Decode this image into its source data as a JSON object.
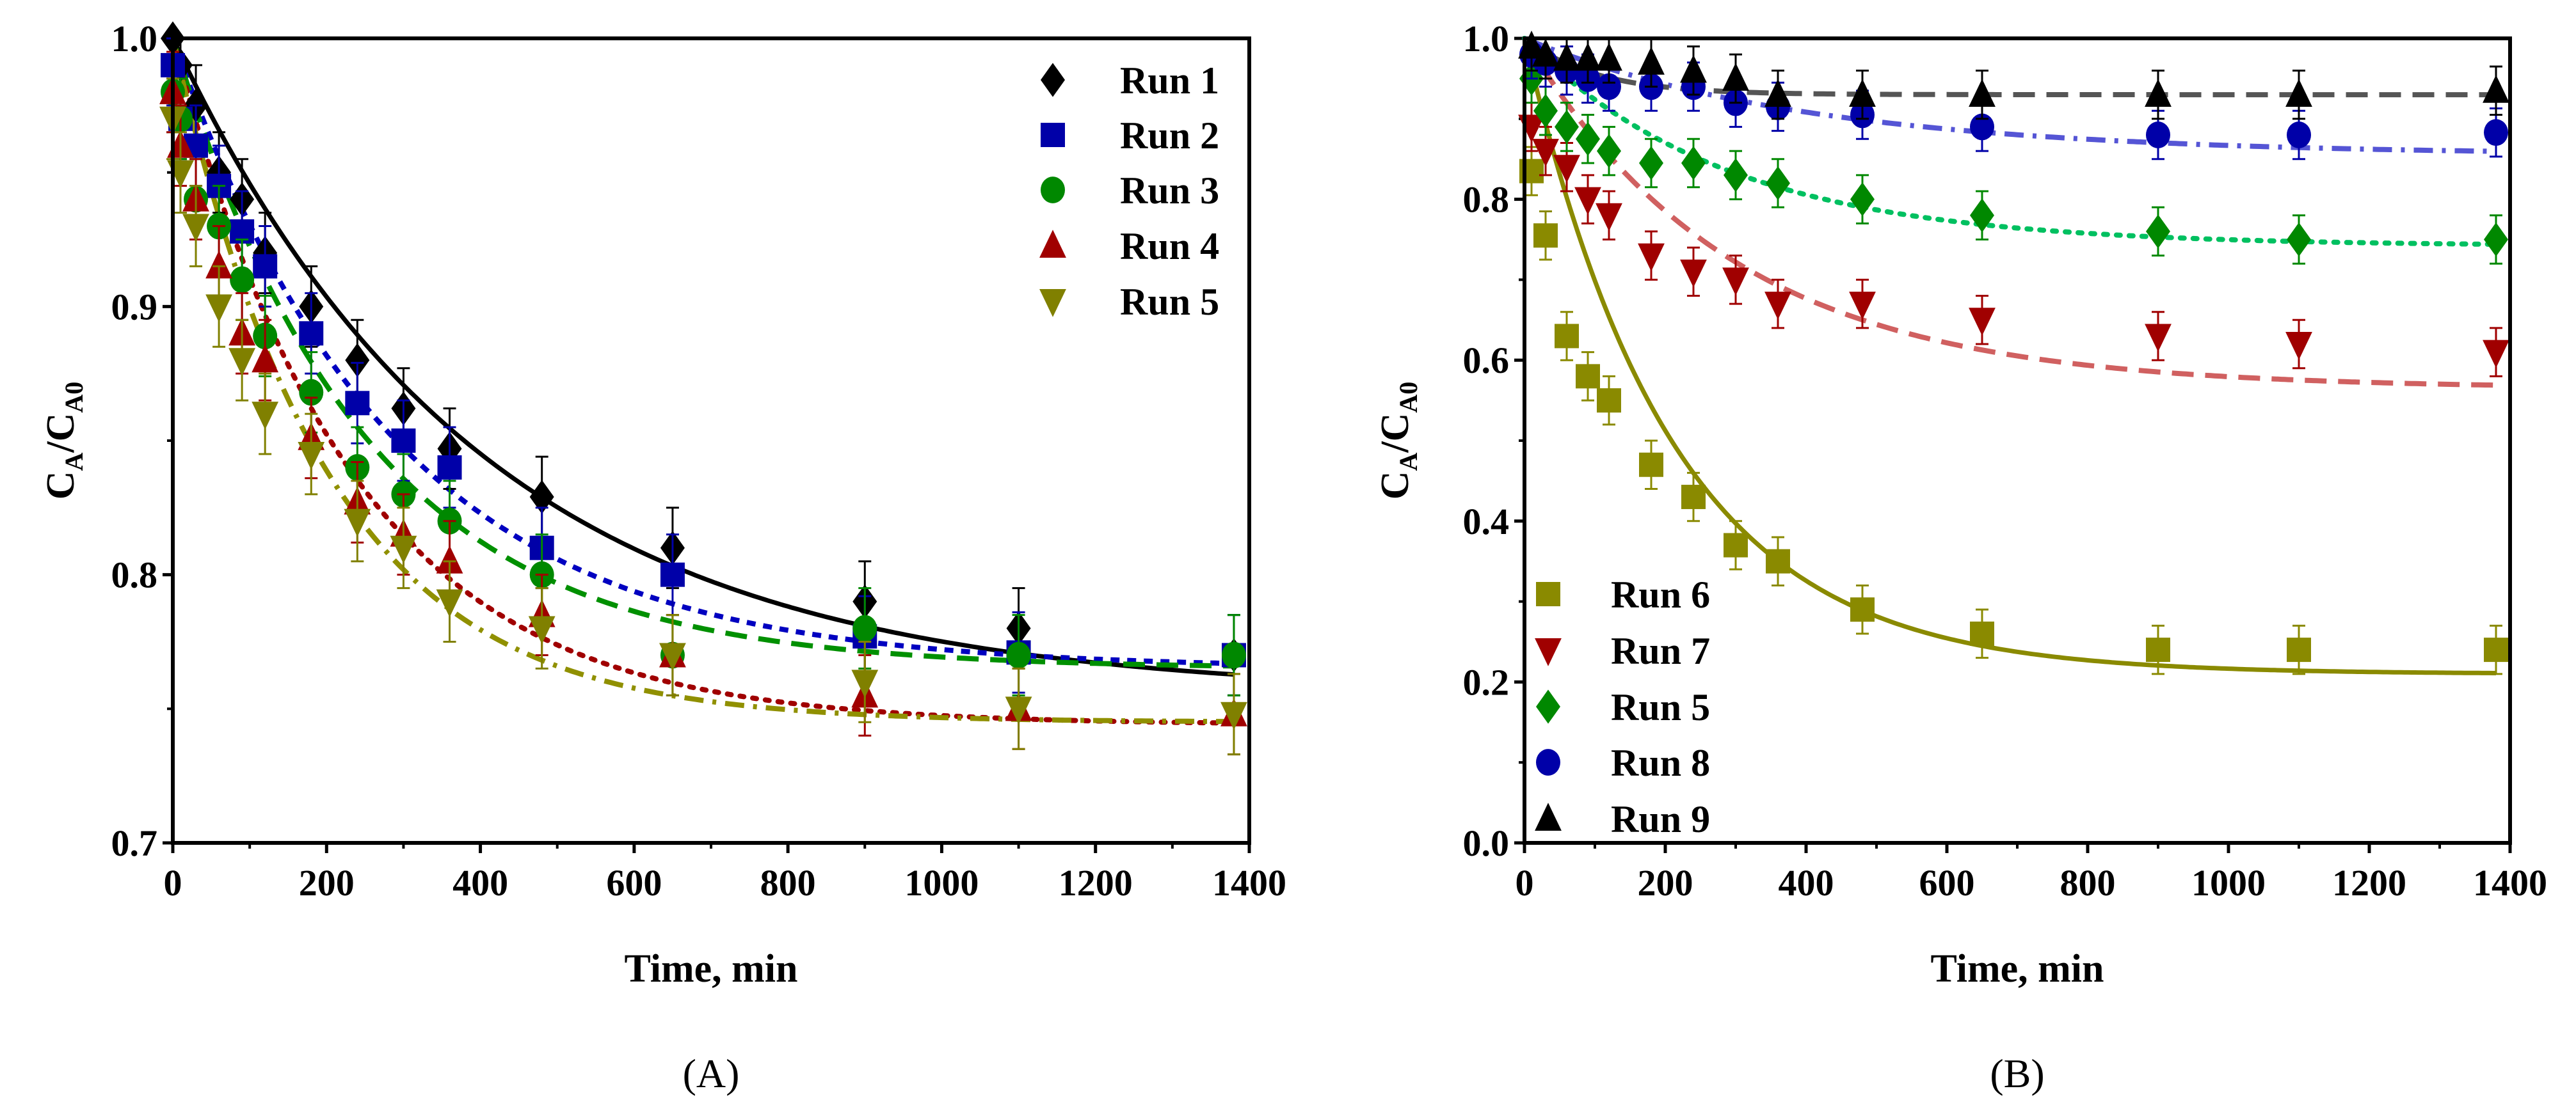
{
  "chart_data": [
    {
      "panel": "(A)",
      "type": "scatter",
      "xlabel": "Time, min",
      "ylabel": {
        "c1": "C",
        "s1": "A",
        "c2": "/C",
        "s2": "A0"
      },
      "xlim": [
        0,
        1400
      ],
      "ylim": [
        0.7,
        1.0
      ],
      "xticks": [
        0,
        200,
        400,
        600,
        800,
        1000,
        1200,
        1400
      ],
      "yticks": [
        0.7,
        0.8,
        0.9,
        1.0
      ],
      "ytick_labels": [
        "0.7",
        "0.8",
        "0.9",
        "1.0"
      ],
      "legend_position": "top-right",
      "x": [
        0,
        10,
        30,
        60,
        90,
        120,
        180,
        240,
        300,
        360,
        480,
        650,
        900,
        1100,
        1380
      ],
      "series": [
        {
          "name": "Run 1",
          "marker": "diamond",
          "color": "#000000",
          "line": "solid",
          "line_color": "#000000",
          "error": 0.015,
          "values": [
            1.0,
            0.99,
            0.975,
            0.95,
            0.94,
            0.92,
            0.9,
            0.88,
            0.862,
            0.847,
            0.829,
            0.81,
            0.79,
            0.78,
            0.77
          ],
          "fit": {
            "c_inf": 0.755,
            "k": 0.0025
          }
        },
        {
          "name": "Run 2",
          "marker": "square",
          "color": "#0000a8",
          "line": "short-dash",
          "line_color": "#0000c0",
          "error": 0.015,
          "values": [
            0.99,
            0.97,
            0.96,
            0.945,
            0.928,
            0.915,
            0.89,
            0.864,
            0.85,
            0.84,
            0.81,
            0.8,
            0.777,
            0.771,
            0.77
          ],
          "fit": {
            "c_inf": 0.765,
            "k": 0.0035
          }
        },
        {
          "name": "Run 3",
          "marker": "circle",
          "color": "#008800",
          "line": "dash",
          "line_color": "#009000",
          "error": 0.015,
          "values": [
            0.98,
            0.97,
            0.94,
            0.93,
            0.91,
            0.889,
            0.868,
            0.84,
            0.83,
            0.82,
            0.8,
            0.77,
            0.78,
            0.77,
            0.77
          ],
          "fit": {
            "c_inf": 0.765,
            "k": 0.004
          }
        },
        {
          "name": "Run 4",
          "marker": "triangle-up",
          "color": "#a00000",
          "line": "dot",
          "line_color": "#a00000",
          "error": 0.015,
          "values": [
            0.98,
            0.96,
            0.94,
            0.915,
            0.89,
            0.88,
            0.851,
            0.827,
            0.815,
            0.805,
            0.785,
            0.77,
            0.755,
            0.75,
            0.748
          ],
          "fit": {
            "c_inf": 0.744,
            "k": 0.0043
          }
        },
        {
          "name": "Run 5",
          "marker": "triangle-down",
          "color": "#808000",
          "line": "dash-dot",
          "line_color": "#909000",
          "error": 0.015,
          "values": [
            0.97,
            0.95,
            0.93,
            0.9,
            0.88,
            0.86,
            0.845,
            0.82,
            0.81,
            0.79,
            0.78,
            0.77,
            0.76,
            0.75,
            0.748
          ],
          "fit": {
            "c_inf": 0.745,
            "k": 0.005
          }
        }
      ]
    },
    {
      "panel": "(B)",
      "type": "scatter",
      "xlabel": "Time, min",
      "ylabel": {
        "c1": "C",
        "s1": "A",
        "c2": "/C",
        "s2": "A0"
      },
      "xlim": [
        0,
        1400
      ],
      "ylim": [
        0.0,
        1.0
      ],
      "xticks": [
        0,
        200,
        400,
        600,
        800,
        1000,
        1200,
        1400
      ],
      "yticks": [
        0.0,
        0.2,
        0.4,
        0.6,
        0.8,
        1.0
      ],
      "ytick_labels": [
        "0.0",
        "0.2",
        "0.4",
        "0.6",
        "0.8",
        "1.0"
      ],
      "legend_position": "bottom-left",
      "x": [
        10,
        30,
        60,
        90,
        120,
        180,
        240,
        300,
        360,
        480,
        650,
        900,
        1100,
        1380
      ],
      "series": [
        {
          "name": "Run 6",
          "marker": "square",
          "color": "#8a8a00",
          "line": "solid",
          "line_color": "#8a8a00",
          "error": 0.03,
          "values": [
            0.835,
            0.755,
            0.63,
            0.58,
            0.55,
            0.47,
            0.43,
            0.37,
            0.35,
            0.29,
            0.26,
            0.24,
            0.24,
            0.24
          ],
          "fit": {
            "c_inf": 0.21,
            "k": 0.0048
          }
        },
        {
          "name": "Run 7",
          "marker": "triangle-down",
          "color": "#a00000",
          "line": "dash",
          "line_color": "#d06060",
          "error": 0.03,
          "values": [
            0.89,
            0.86,
            0.84,
            0.8,
            0.78,
            0.73,
            0.71,
            0.7,
            0.67,
            0.67,
            0.65,
            0.63,
            0.62,
            0.61
          ],
          "fit": {
            "c_inf": 0.565,
            "k": 0.0034
          }
        },
        {
          "name": "Run 5",
          "marker": "diamond",
          "color": "#008800",
          "line": "dot",
          "line_color": "#00c060",
          "error": 0.03,
          "values": [
            0.95,
            0.91,
            0.89,
            0.875,
            0.86,
            0.845,
            0.845,
            0.83,
            0.82,
            0.8,
            0.78,
            0.76,
            0.75,
            0.75
          ],
          "fit": {
            "c_inf": 0.742,
            "k": 0.0035
          }
        },
        {
          "name": "Run 8",
          "marker": "circle",
          "color": "#0000a8",
          "line": "dash-dot",
          "line_color": "#5555d5",
          "error": 0.03,
          "values": [
            0.98,
            0.97,
            0.96,
            0.95,
            0.94,
            0.94,
            0.94,
            0.92,
            0.915,
            0.905,
            0.89,
            0.88,
            0.88,
            0.883
          ],
          "fit": {
            "c_inf": 0.855,
            "k": 0.0025
          }
        },
        {
          "name": "Run 9",
          "marker": "triangle-up",
          "color": "#000000",
          "line": "dash",
          "line_color": "#555555",
          "error": 0.03,
          "values": [
            0.99,
            0.98,
            0.975,
            0.975,
            0.975,
            0.97,
            0.96,
            0.95,
            0.93,
            0.93,
            0.93,
            0.93,
            0.93,
            0.935
          ],
          "fit": {
            "c_inf": 0.93,
            "k": 0.01
          }
        }
      ]
    }
  ]
}
